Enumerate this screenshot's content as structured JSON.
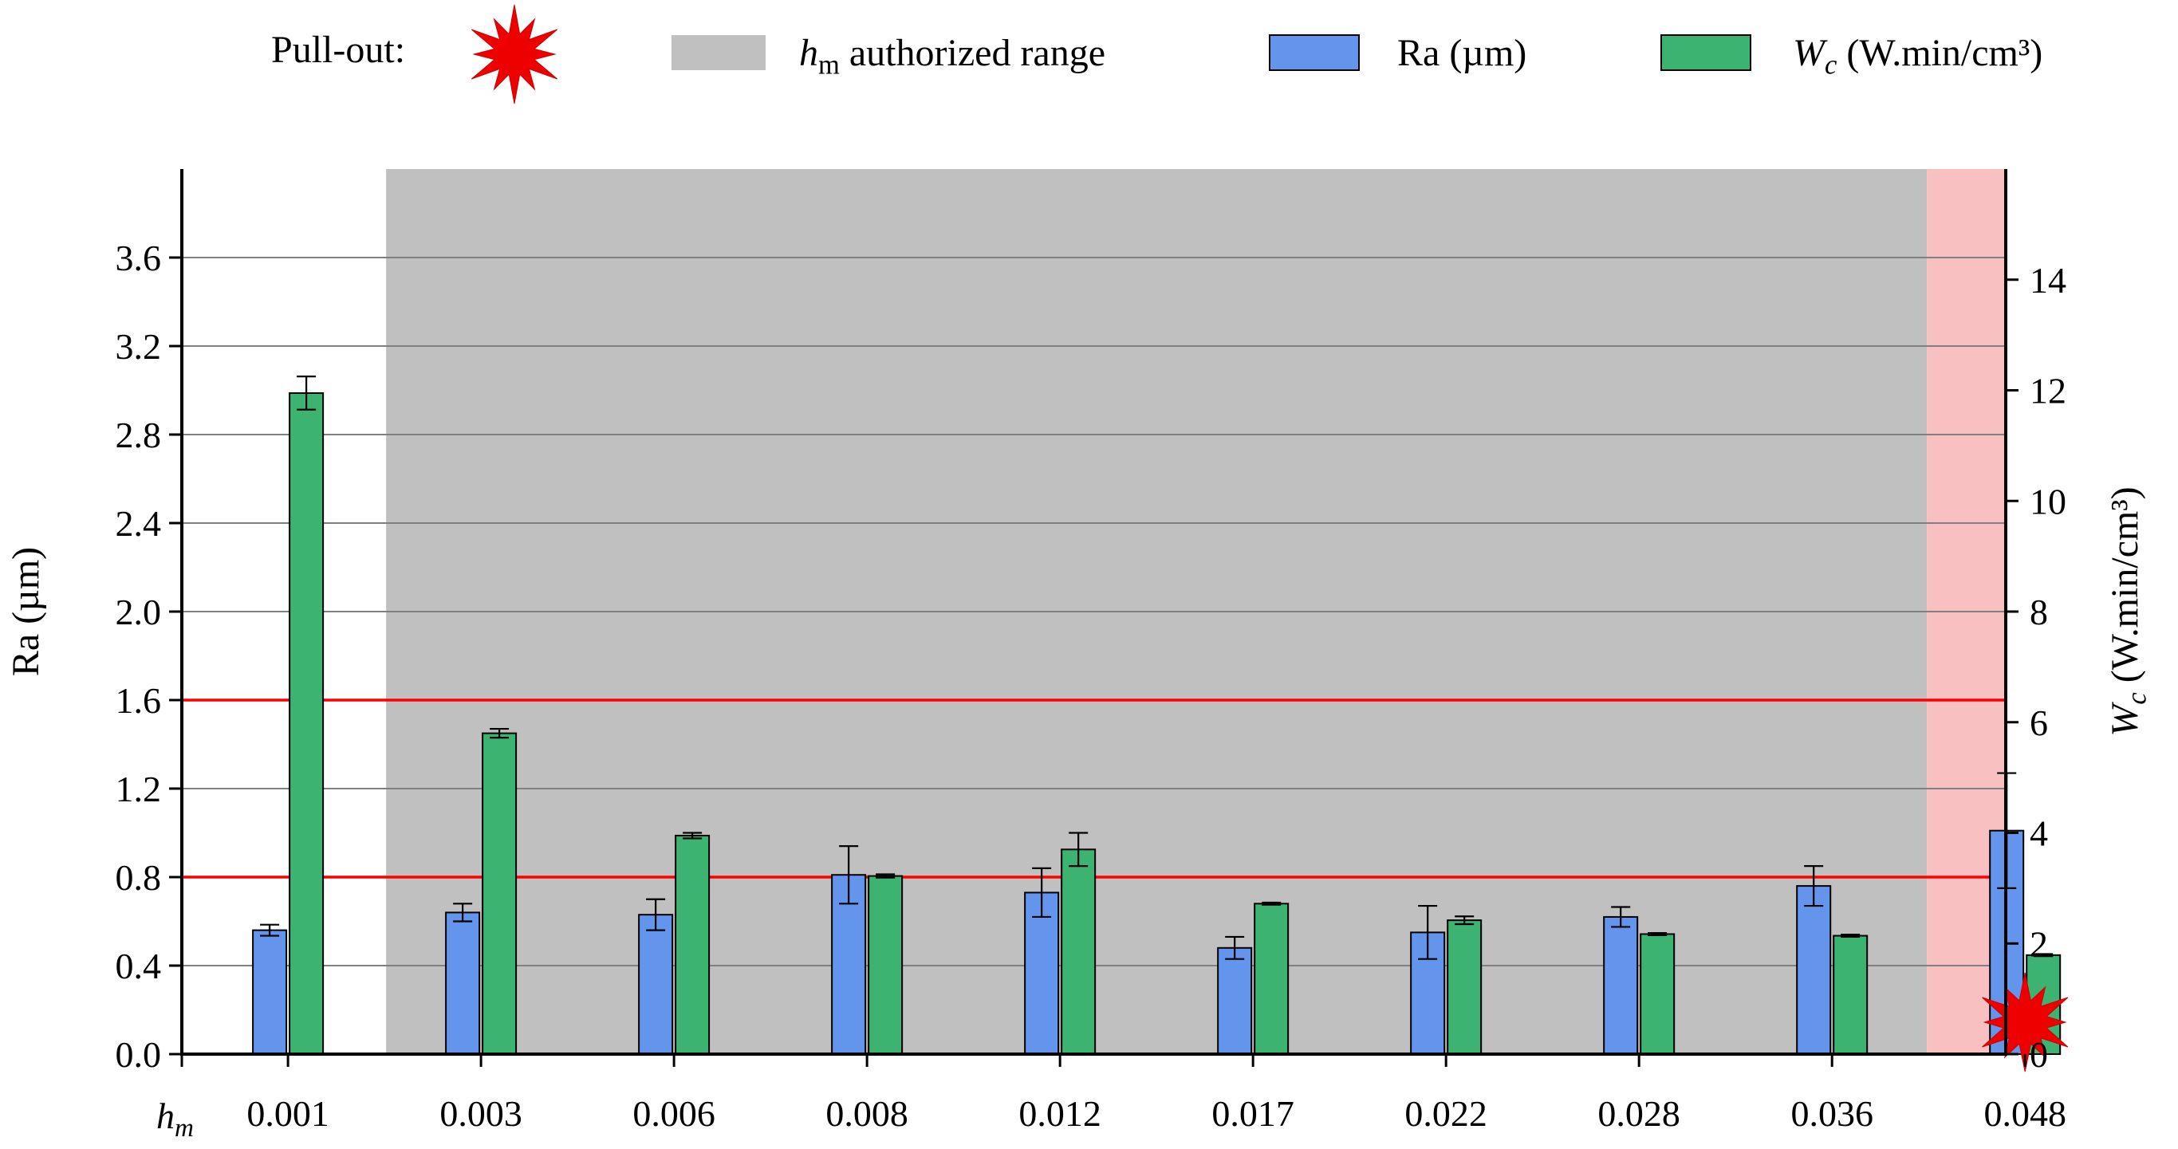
{
  "legend": {
    "pullout_label": "Pull-out:",
    "range_label_symbol": "h",
    "range_label_sub": "m",
    "range_label_text": " authorized range",
    "ra_label": "Ra (µm)",
    "wc_symbol": "W",
    "wc_sub": "c",
    "wc_text": " (W.min/cm³)"
  },
  "colors": {
    "ra_bar": "#6495ed",
    "wc_bar": "#3cb371",
    "authorized_range": "#c0c0c0",
    "pullout_zone": "#f8c0c0",
    "limit_line": "#ff0000",
    "gridline": "#808080",
    "pullout_star": "#ee0000"
  },
  "chart_data": {
    "type": "bar",
    "xaxis_symbol": "h",
    "xaxis_sub": "m",
    "categories": [
      "0.001",
      "0.003",
      "0.006",
      "0.008",
      "0.012",
      "0.017",
      "0.022",
      "0.028",
      "0.036",
      "0.048"
    ],
    "series": [
      {
        "name": "Ra (µm)",
        "axis": "left",
        "values": [
          0.56,
          0.64,
          0.63,
          0.81,
          0.73,
          0.48,
          0.55,
          0.62,
          0.76,
          1.01
        ],
        "errors": [
          0.025,
          0.04,
          0.07,
          0.13,
          0.11,
          0.05,
          0.12,
          0.045,
          0.09,
          0.26
        ]
      },
      {
        "name": "Wc (W.min/cm³)",
        "axis": "right",
        "values": [
          11.95,
          5.8,
          3.95,
          3.22,
          3.7,
          2.72,
          2.42,
          2.17,
          2.14,
          1.79
        ],
        "errors": [
          0.3,
          0.08,
          0.05,
          0.03,
          0.3,
          0.02,
          0.07,
          0.02,
          0.02,
          0.02
        ]
      }
    ],
    "y_left": {
      "label": "Ra (µm)",
      "ylim": [
        0,
        4.0
      ],
      "ticks": [
        "0.0",
        "0.4",
        "0.8",
        "1.2",
        "1.6",
        "2.0",
        "2.4",
        "2.8",
        "3.2",
        "3.6"
      ],
      "tick_values": [
        0,
        0.4,
        0.8,
        1.2,
        1.6,
        2.0,
        2.4,
        2.8,
        3.2,
        3.6
      ]
    },
    "y_right": {
      "label_symbol": "W",
      "label_sub": "c",
      "label_text": " (W.min/cm³)",
      "ylim": [
        0,
        16
      ],
      "ticks": [
        "0",
        "2",
        "4",
        "6",
        "8",
        "10",
        "12",
        "14"
      ],
      "tick_values": [
        0,
        2,
        4,
        6,
        8,
        10,
        12,
        14
      ]
    },
    "reference_lines_left": [
      0.8,
      1.6
    ],
    "authorized_range": {
      "from_category": "0.003",
      "to_category": "0.036"
    },
    "pullout_zone": {
      "from_category": "0.048"
    },
    "pullout_markers": [
      "0.048"
    ],
    "grid": true,
    "legend_position": "top"
  }
}
